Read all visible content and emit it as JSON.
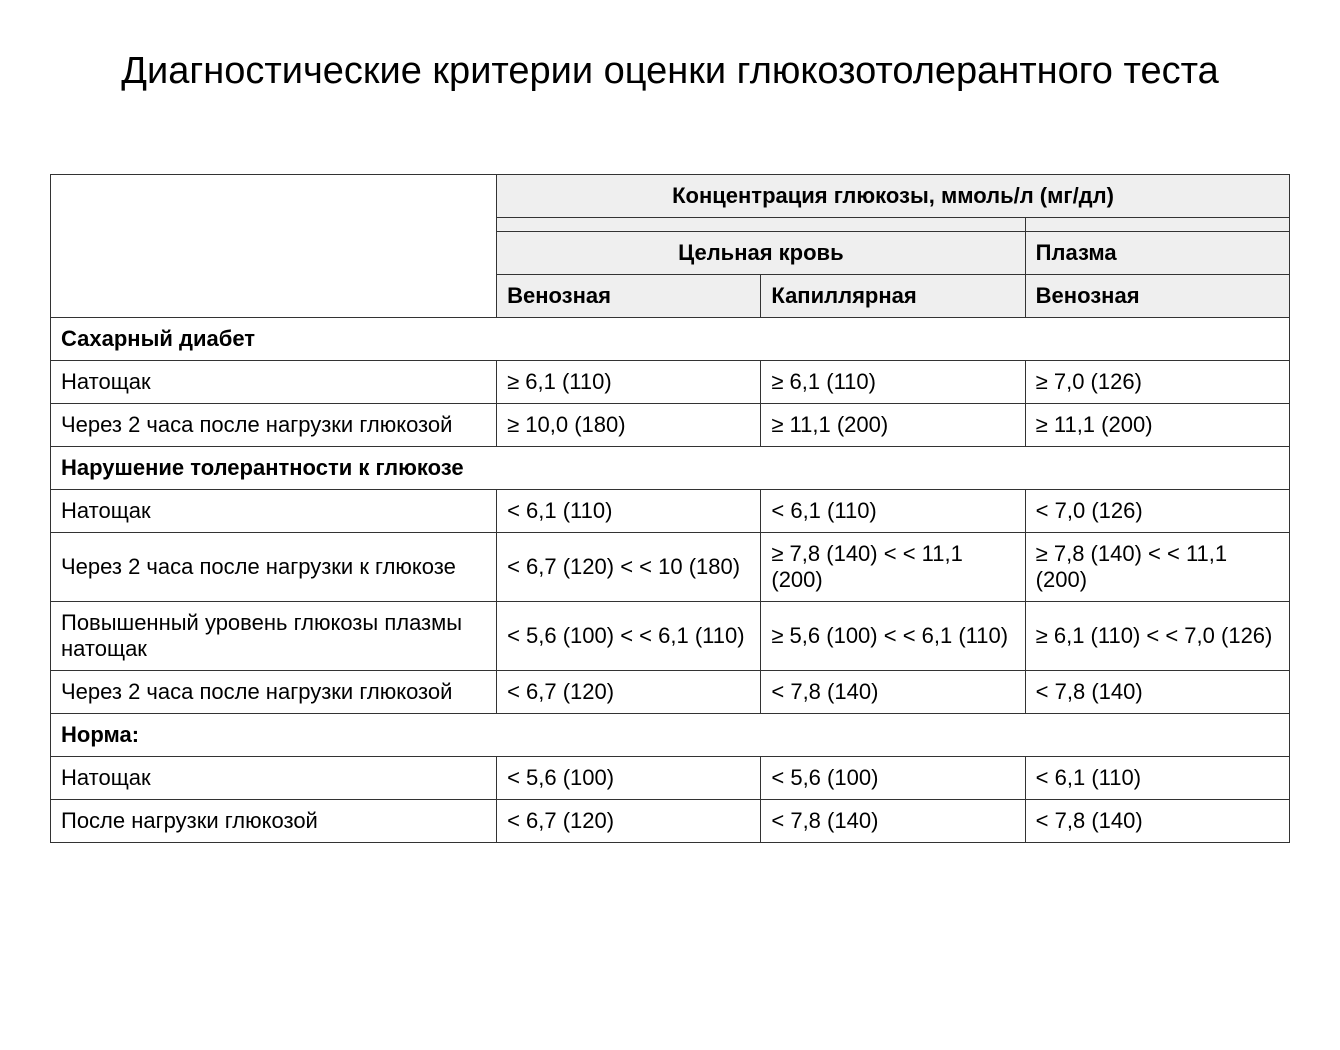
{
  "title": "Диагностические критерии оценки глюкозотолерантного теста",
  "table": {
    "header": {
      "main": "Концентрация глюкозы, ммоль/л (мг/дл)",
      "group1": "Цельная кровь",
      "group2": "Плазма",
      "sub1": "Венозная",
      "sub2": "Капиллярная",
      "sub3": "Венозная"
    },
    "sections": [
      {
        "title": "Сахарный диабет",
        "rows": [
          {
            "label": "Натощак",
            "c1": "≥ 6,1 (110)",
            "c2": "≥ 6,1 (110)",
            "c3": "≥ 7,0 (126)"
          },
          {
            "label": "Через 2 часа после нагрузки глюкозой",
            "c1": "≥ 10,0 (180)",
            "c2": "≥ 11,1 (200)",
            "c3": "≥ 11,1 (200)"
          }
        ]
      },
      {
        "title": "Нарушение толерантности к глюкозе",
        "rows": [
          {
            "label": "Натощак",
            "c1": "< 6,1 (110)",
            "c2": "< 6,1 (110)",
            "c3": "< 7,0 (126)"
          },
          {
            "label": "Через 2 часа после нагрузки к глюкозе",
            "c1": "< 6,7 (120) < < 10 (180)",
            "c2": "≥ 7,8 (140) < < 11,1 (200)",
            "c3": "≥ 7,8 (140) < < 11,1 (200)"
          },
          {
            "label": "Повышенный уровень глюкозы плазмы натощак",
            "c1": "< 5,6 (100) < < 6,1 (110)",
            "c2": "≥ 5,6 (100) < < 6,1 (110)",
            "c3": "≥ 6,1 (110) < < 7,0 (126)"
          },
          {
            "label": "Через 2 часа после нагрузки глюкозой",
            "c1": "< 6,7 (120)",
            "c2": "< 7,8 (140)",
            "c3": "< 7,8 (140)"
          }
        ]
      },
      {
        "title": "Норма:",
        "rows": [
          {
            "label": "Натощак",
            "c1": "< 5,6 (100)",
            "c2": "< 5,6 (100)",
            "c3": "< 6,1 (110)"
          },
          {
            "label": "После нагрузки глюкозой",
            "c1": "< 6,7 (120)",
            "c2": "< 7,8 (140)",
            "c3": "< 7,8 (140)"
          }
        ]
      }
    ]
  },
  "styling": {
    "background_color": "#ffffff",
    "border_color": "#333333",
    "header_bg_stripe_a": "#f2f2f2",
    "header_bg_stripe_b": "#ececec",
    "text_color": "#000000",
    "title_fontsize": 38,
    "body_fontsize": 22,
    "font_family": "Arial"
  }
}
